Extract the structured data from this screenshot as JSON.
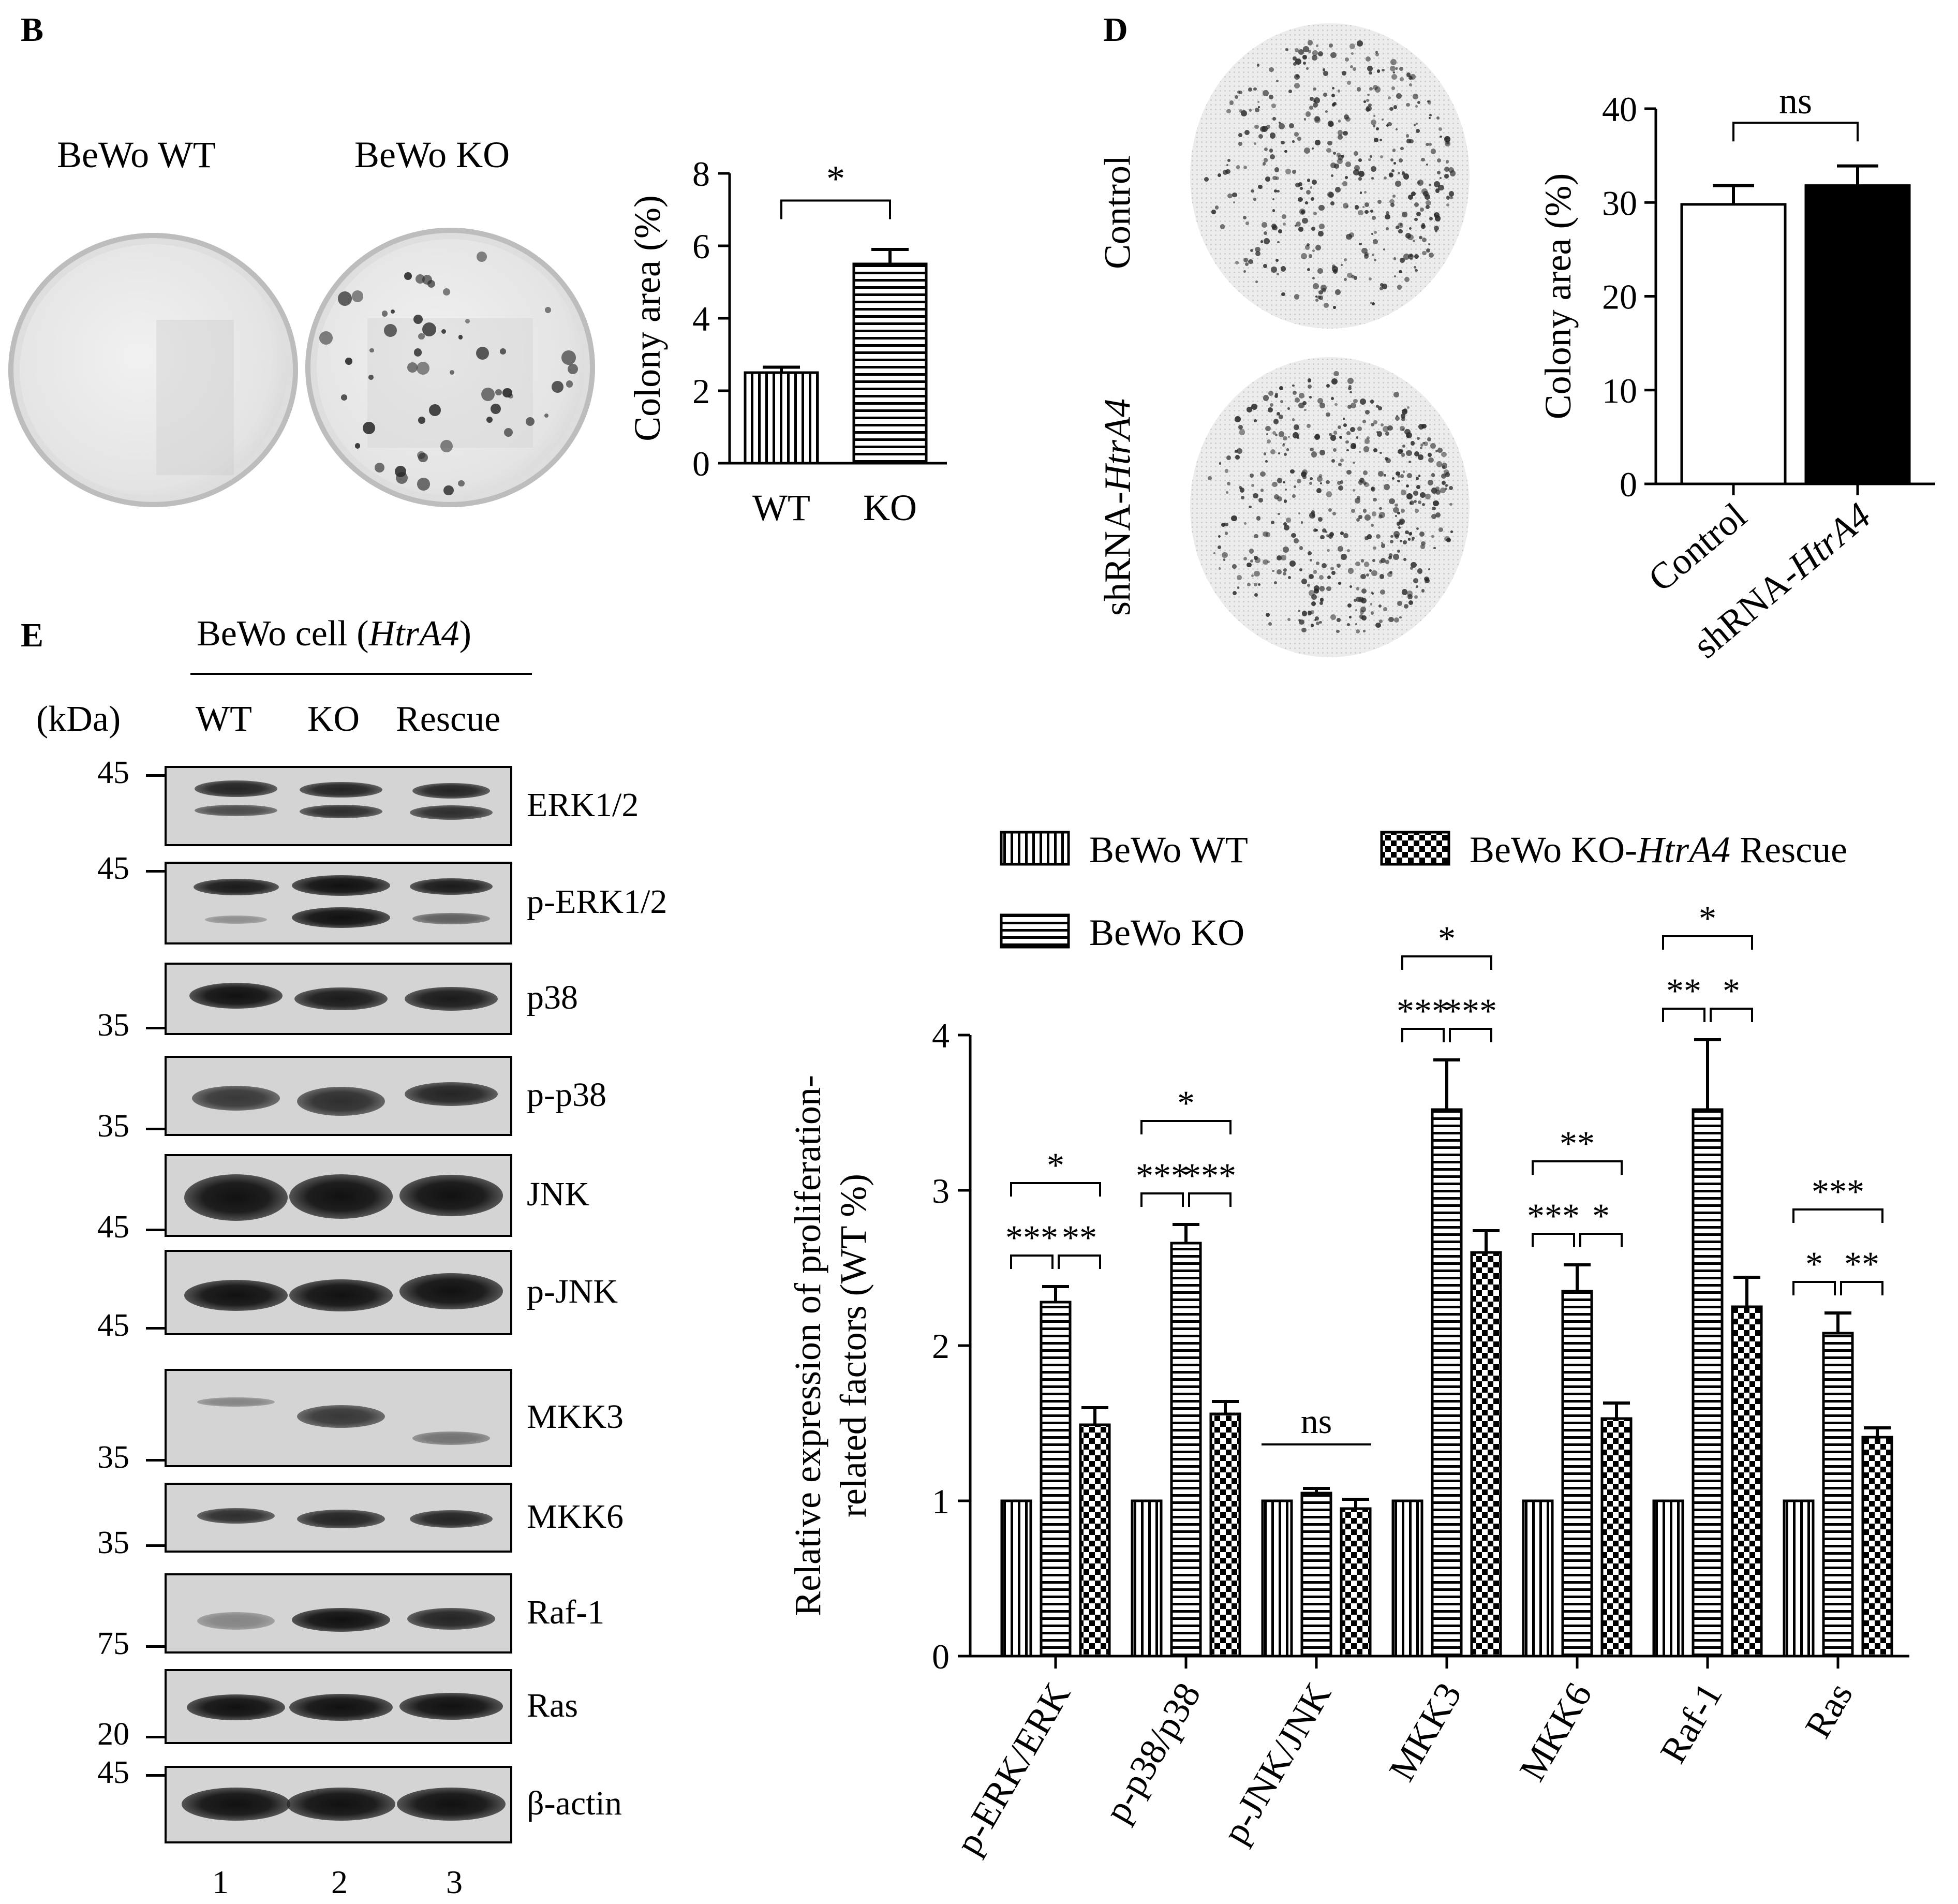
{
  "panels": {
    "b": "B",
    "d": "D",
    "e": "E"
  },
  "panel_b": {
    "dish_labels": [
      "BeWo WT",
      "BeWo KO"
    ]
  },
  "panel_d": {
    "row_labels": [
      "Control",
      "shRNA-HtrA4"
    ],
    "row_label_parts": [
      {
        "plain": "Control",
        "italic": ""
      },
      {
        "plain": "shRNA-",
        "italic": "HtrA4"
      }
    ]
  },
  "panel_e": {
    "header_plain": "BeWo cell (",
    "header_italic": "HtrA4",
    "header_close": ")",
    "kda_label": "(kDa)",
    "lanes": [
      "WT",
      "KO",
      "Rescue"
    ],
    "lane_numbers": [
      "1",
      "2",
      "3"
    ],
    "blots": [
      {
        "label": "ERK1/2",
        "markers": [
          "45"
        ]
      },
      {
        "label": "p-ERK1/2",
        "markers": [
          "45"
        ]
      },
      {
        "label": "p38",
        "markers": [
          "35"
        ]
      },
      {
        "label": "p-p38",
        "markers": [
          "35"
        ]
      },
      {
        "label": "JNK",
        "markers": [
          "45"
        ]
      },
      {
        "label": "p-JNK",
        "markers": [
          "45"
        ]
      },
      {
        "label": "MKK3",
        "markers": [
          "35"
        ]
      },
      {
        "label": "MKK6",
        "markers": [
          "35"
        ]
      },
      {
        "label": "Raf-1",
        "markers": [
          "75"
        ]
      },
      {
        "label": "Ras",
        "markers": [
          "20"
        ]
      },
      {
        "label": "β-actin",
        "markers": [
          "45"
        ]
      }
    ]
  },
  "chart_data": [
    {
      "id": "B",
      "type": "bar",
      "categories": [
        "WT",
        "KO"
      ],
      "values": [
        2.5,
        5.5
      ],
      "errors": [
        0.15,
        0.4
      ],
      "ylabel": "Colony area (%)",
      "ylim": [
        0,
        8
      ],
      "yticks": [
        0,
        2,
        4,
        6,
        8
      ],
      "patterns": [
        "vertical-lines",
        "horizontal-lines"
      ],
      "significance": [
        {
          "pair": [
            0,
            1
          ],
          "label": "*"
        }
      ]
    },
    {
      "id": "D",
      "type": "bar",
      "categories": [
        "Control",
        "shRNA-HtrA4"
      ],
      "category_parts": [
        {
          "plain": "Control",
          "italic": ""
        },
        {
          "plain": "shRNA-",
          "italic": "HtrA4"
        }
      ],
      "values": [
        29.8,
        31.8
      ],
      "errors": [
        2.0,
        2.1
      ],
      "ylabel": "Colony area (%)",
      "ylim": [
        0,
        40
      ],
      "yticks": [
        0,
        10,
        20,
        30,
        40
      ],
      "patterns": [
        "white",
        "black"
      ],
      "significance": [
        {
          "pair": [
            0,
            1
          ],
          "label": "ns"
        }
      ]
    },
    {
      "id": "E",
      "type": "bar",
      "categories": [
        "p-ERK/ERK",
        "p-p38/p38",
        "p-JNK/JNK",
        "MKK3",
        "MKK6",
        "Raf-1",
        "Ras"
      ],
      "ylabel_lines": [
        "Relative expression of proliferation-",
        "related factors (WT %)"
      ],
      "ylim": [
        0,
        4
      ],
      "yticks": [
        0,
        1,
        2,
        3,
        4
      ],
      "legend": [
        {
          "plain": "BeWo WT",
          "italic": "",
          "after": "",
          "pattern": "vertical-lines"
        },
        {
          "plain": "BeWo KO",
          "italic": "",
          "after": "",
          "pattern": "horizontal-lines"
        },
        {
          "plain": "BeWo KO-",
          "italic": "HtrA4",
          "after": " Rescue",
          "pattern": "checker"
        }
      ],
      "legend_placement": "top",
      "series": [
        {
          "values": [
            1.0,
            1.0,
            1.0,
            1.0,
            1.0,
            1.0,
            1.0
          ],
          "errors": [
            0,
            0,
            0,
            0,
            0,
            0,
            0
          ]
        },
        {
          "values": [
            2.28,
            2.66,
            1.05,
            3.52,
            2.35,
            3.52,
            2.08
          ],
          "errors": [
            0.1,
            0.12,
            0.03,
            0.32,
            0.17,
            0.45,
            0.13
          ]
        },
        {
          "values": [
            1.49,
            1.56,
            0.95,
            2.6,
            1.53,
            2.25,
            1.41
          ],
          "errors": [
            0.11,
            0.08,
            0.06,
            0.14,
            0.1,
            0.19,
            0.06
          ]
        }
      ],
      "significance": [
        {
          "group": 0,
          "pair": [
            0,
            2
          ],
          "label": "*",
          "level": 3
        },
        {
          "group": 0,
          "pair": [
            0,
            1
          ],
          "label": "***",
          "level": 2
        },
        {
          "group": 0,
          "pair": [
            1,
            2
          ],
          "label": "**",
          "level": 2
        },
        {
          "group": 1,
          "pair": [
            0,
            2
          ],
          "label": "*",
          "level": 3
        },
        {
          "group": 1,
          "pair": [
            0,
            1
          ],
          "label": "***",
          "level": 2
        },
        {
          "group": 1,
          "pair": [
            1,
            2
          ],
          "label": "***",
          "level": 2
        },
        {
          "group": 2,
          "pair": [
            0,
            2
          ],
          "label": "ns",
          "level": 1
        },
        {
          "group": 3,
          "pair": [
            0,
            2
          ],
          "label": "*",
          "level": 3
        },
        {
          "group": 3,
          "pair": [
            0,
            1
          ],
          "label": "***",
          "level": 2
        },
        {
          "group": 3,
          "pair": [
            1,
            2
          ],
          "label": "***",
          "level": 2
        },
        {
          "group": 4,
          "pair": [
            0,
            2
          ],
          "label": "**",
          "level": 3
        },
        {
          "group": 4,
          "pair": [
            0,
            1
          ],
          "label": "***",
          "level": 2
        },
        {
          "group": 4,
          "pair": [
            1,
            2
          ],
          "label": "*",
          "level": 2
        },
        {
          "group": 5,
          "pair": [
            0,
            2
          ],
          "label": "*",
          "level": 3
        },
        {
          "group": 5,
          "pair": [
            0,
            1
          ],
          "label": "**",
          "level": 2
        },
        {
          "group": 5,
          "pair": [
            1,
            2
          ],
          "label": "*",
          "level": 2
        },
        {
          "group": 6,
          "pair": [
            0,
            2
          ],
          "label": "***",
          "level": 3
        },
        {
          "group": 6,
          "pair": [
            0,
            1
          ],
          "label": "*",
          "level": 2
        },
        {
          "group": 6,
          "pair": [
            1,
            2
          ],
          "label": "**",
          "level": 2
        }
      ]
    }
  ]
}
